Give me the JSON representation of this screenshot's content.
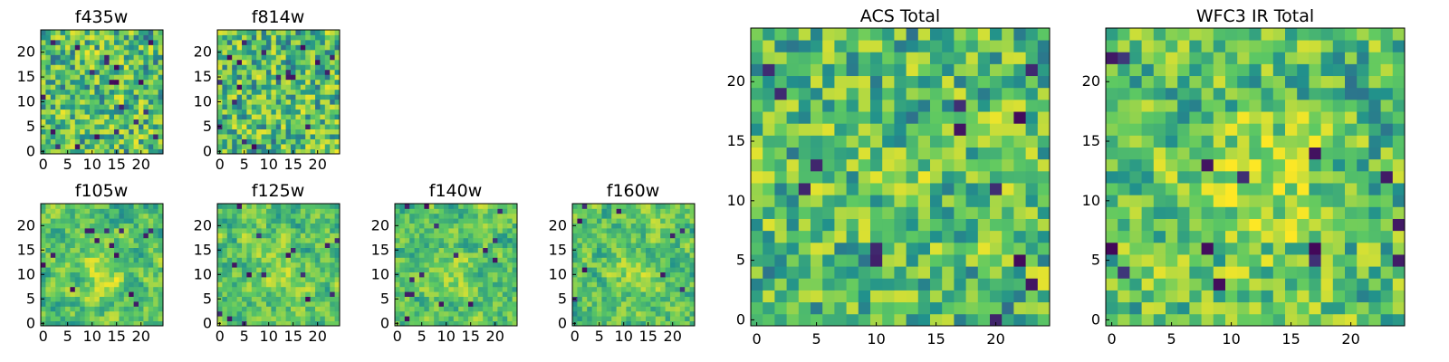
{
  "chart_data": {
    "type": "heatmap",
    "grid_size": 25,
    "colormap": [
      "#440154",
      "#3b528b",
      "#21918c",
      "#5ec962",
      "#fde725"
    ],
    "value_range": [
      0,
      1
    ],
    "panels": [
      {
        "id": "f435w",
        "title": "f435w",
        "xticks": [
          0,
          5,
          10,
          15,
          20
        ],
        "yticks": [
          0,
          5,
          10,
          15,
          20
        ],
        "seed": 435,
        "smooth": 0.12,
        "blob": 0.0
      },
      {
        "id": "f814w",
        "title": "f814w",
        "xticks": [
          0,
          5,
          10,
          15,
          20
        ],
        "yticks": [
          0,
          5,
          10,
          15,
          20
        ],
        "seed": 814,
        "smooth": 0.12,
        "blob": 0.0
      },
      {
        "id": "f105w",
        "title": "f105w",
        "xticks": [
          0,
          5,
          10,
          15,
          20
        ],
        "yticks": [
          0,
          5,
          10,
          15,
          20
        ],
        "seed": 105,
        "smooth": 0.55,
        "blob": 0.28
      },
      {
        "id": "f125w",
        "title": "f125w",
        "xticks": [
          0,
          5,
          10,
          15,
          20
        ],
        "yticks": [
          0,
          5,
          10,
          15,
          20
        ],
        "seed": 125,
        "smooth": 0.55,
        "blob": 0.18
      },
      {
        "id": "f140w",
        "title": "f140w",
        "xticks": [
          0,
          5,
          10,
          15,
          20
        ],
        "yticks": [
          0,
          5,
          10,
          15,
          20
        ],
        "seed": 140,
        "smooth": 0.55,
        "blob": 0.15
      },
      {
        "id": "f160w",
        "title": "f160w",
        "xticks": [
          0,
          5,
          10,
          15,
          20
        ],
        "yticks": [
          0,
          5,
          10,
          15,
          20
        ],
        "seed": 160,
        "smooth": 0.55,
        "blob": 0.15
      },
      {
        "id": "acs_total",
        "title": "ACS Total",
        "xticks": [
          0,
          5,
          10,
          15,
          20
        ],
        "yticks": [
          0,
          5,
          10,
          15,
          20
        ],
        "seed": 901,
        "smooth": 0.2,
        "blob": 0.05
      },
      {
        "id": "wfc3_ir_total",
        "title": "WFC3 IR Total",
        "xticks": [
          0,
          5,
          10,
          15,
          20
        ],
        "yticks": [
          0,
          5,
          10,
          15,
          20
        ],
        "seed": 902,
        "smooth": 0.25,
        "blob": 0.3
      }
    ]
  }
}
